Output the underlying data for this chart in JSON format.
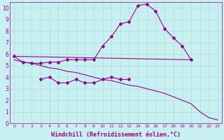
{
  "bg_color": "#c8f0f0",
  "line_color": "#990099",
  "grid_color": "#aadddd",
  "xlim": [
    -0.5,
    23.5
  ],
  "ylim": [
    0,
    10.5
  ],
  "xlabel": "Windchill (Refroidissement éolien,°C)",
  "xlabel_fontsize": 6.0,
  "line1_x": [
    0,
    1,
    2,
    3,
    4,
    5,
    6,
    7,
    8,
    9,
    10,
    11,
    12,
    13,
    14,
    15,
    16,
    17,
    18,
    19,
    20
  ],
  "line1_y": [
    5.8,
    5.3,
    5.2,
    5.2,
    5.3,
    5.3,
    5.5,
    5.5,
    5.5,
    5.5,
    6.7,
    7.5,
    8.6,
    8.8,
    10.2,
    10.3,
    9.7,
    8.2,
    7.4,
    6.7,
    5.5
  ],
  "line2_x": [
    0,
    20
  ],
  "line2_y": [
    5.8,
    5.5
  ],
  "line3_x": [
    3,
    4,
    5,
    6,
    7,
    8,
    9,
    10,
    11,
    12,
    13
  ],
  "line3_y": [
    3.8,
    4.0,
    3.5,
    3.5,
    3.8,
    3.5,
    3.5,
    3.8,
    4.0,
    3.8,
    3.8
  ],
  "line4_x": [
    0,
    1,
    2,
    3,
    4,
    5,
    6,
    7,
    8,
    9,
    10,
    11,
    12,
    13,
    14,
    15,
    16,
    17,
    18,
    19,
    20,
    21,
    22,
    23
  ],
  "line4_y": [
    5.5,
    5.3,
    5.2,
    5.0,
    4.8,
    4.7,
    4.5,
    4.4,
    4.2,
    4.0,
    3.8,
    3.7,
    3.5,
    3.3,
    3.2,
    3.0,
    2.8,
    2.6,
    2.3,
    2.0,
    1.7,
    1.0,
    0.5,
    0.3
  ]
}
